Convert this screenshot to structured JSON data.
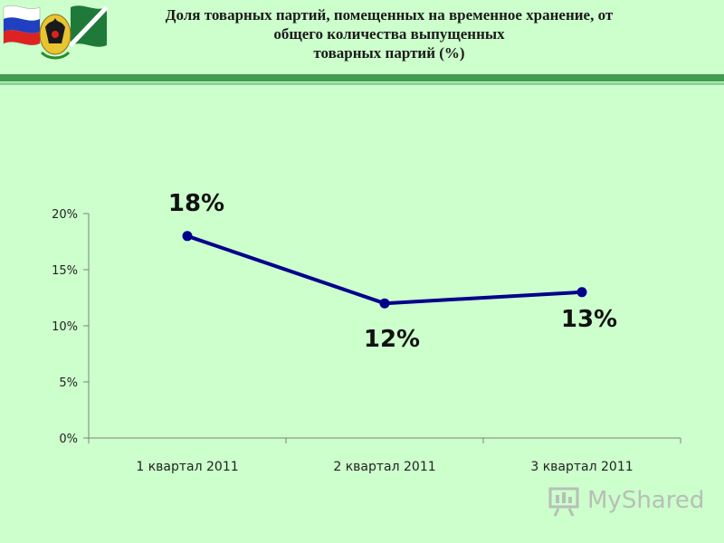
{
  "header": {
    "title_lines": [
      "Доля товарных партий, помещенных на временное хранение, от",
      "общего количества выпущенных",
      "товарных партий (%)"
    ]
  },
  "colors": {
    "background": "#ccffcc",
    "line": "#00008b",
    "header_bar": "#3f9d4f"
  },
  "chart_data": {
    "type": "line",
    "categories": [
      "1 квартал 2011",
      "2 квартал 2011",
      "3 квартал 2011"
    ],
    "series": [
      {
        "values": [
          18,
          12,
          13
        ]
      }
    ],
    "data_labels": [
      "18%",
      "12%",
      "13%"
    ],
    "y_ticks": [
      "0%",
      "5%",
      "10%",
      "15%",
      "20%"
    ],
    "y_tick_values": [
      0,
      5,
      10,
      15,
      20
    ],
    "ylim": [
      0,
      20
    ],
    "xlabel": "",
    "ylabel": "",
    "grid": false,
    "legend": "none"
  },
  "watermark": {
    "text": "MyShared",
    "icon": "presentation-board-icon"
  }
}
